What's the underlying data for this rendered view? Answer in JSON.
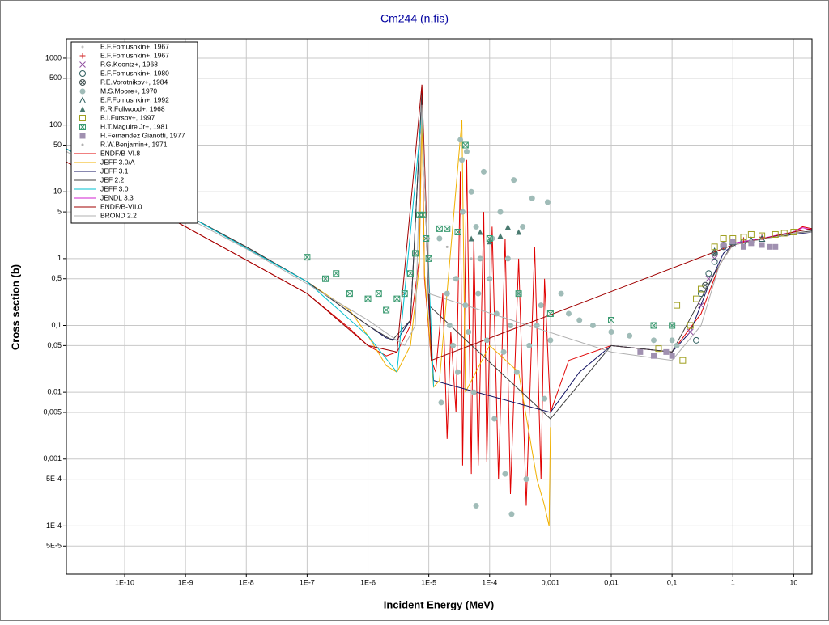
{
  "chart_data": {
    "type": "scatter",
    "title": "Cm244 (n,fis)",
    "x_label": "Incident Energy (MeV)",
    "y_label": "Cross section (b)",
    "log_x": true,
    "log_y": true,
    "grid": true,
    "legend": "upper left",
    "xlim": [
      1.1e-11,
      20
    ],
    "ylim": [
      1.9e-05,
      1950
    ],
    "xticks": [
      {
        "value": 1e-10,
        "label": "1E-10"
      },
      {
        "value": 1e-09,
        "label": "1E-9"
      },
      {
        "value": 1e-08,
        "label": "1E-8"
      },
      {
        "value": 1e-07,
        "label": "1E-7"
      },
      {
        "value": 1e-06,
        "label": "1E-6"
      },
      {
        "value": 1e-05,
        "label": "1E-5"
      },
      {
        "value": 0.0001,
        "label": "1E-4"
      },
      {
        "value": 0.001,
        "label": "0,001"
      },
      {
        "value": 0.01,
        "label": "0,01"
      },
      {
        "value": 0.1,
        "label": "0,1"
      },
      1,
      10
    ],
    "yticks": [
      1000,
      500,
      100,
      50,
      10,
      5,
      1,
      {
        "value": 0.5,
        "label": "0,5"
      },
      {
        "value": 0.1,
        "label": "0,1"
      },
      {
        "value": 0.05,
        "label": "0,05"
      },
      {
        "value": 0.01,
        "label": "0,01"
      },
      {
        "value": 0.005,
        "label": "0,005"
      },
      {
        "value": 0.001,
        "label": "0,001"
      },
      {
        "value": 0.0005,
        "label": "5E-4"
      },
      {
        "value": 0.0001,
        "label": "1E-4"
      },
      {
        "value": 5e-05,
        "label": "5E-5"
      }
    ],
    "series": [
      {
        "name": "E.F.Fomushkin+, 1967",
        "mode": "marker",
        "marker": "dot",
        "color": "#c0c0c0",
        "x": [
          0.5,
          1,
          2
        ],
        "values": [
          1.2,
          1.7,
          1.9
        ]
      },
      {
        "name": "E.F.Fomushkin+, 1967",
        "mode": "marker",
        "marker": "plus",
        "color": "#d02020",
        "x": [
          0.7,
          1.5,
          3
        ],
        "values": [
          1.5,
          1.9,
          2.1
        ]
      },
      {
        "name": "P.G.Koontz+, 1968",
        "mode": "marker",
        "marker": "x",
        "color": "#9050a0",
        "x": [
          0.2,
          0.3,
          0.4,
          0.5,
          0.7,
          1
        ],
        "values": [
          0.08,
          0.2,
          0.5,
          1.0,
          1.5,
          1.7
        ]
      },
      {
        "name": "E.F.Fomushkin+, 1980",
        "mode": "marker",
        "marker": "circle-open",
        "color": "#306060",
        "x": [
          0.25,
          0.3,
          0.4,
          0.5,
          0.7,
          1.5
        ],
        "values": [
          0.06,
          0.3,
          0.6,
          0.9,
          1.5,
          1.8
        ]
      },
      {
        "name": "P.E.Vorotnikov+, 1984",
        "mode": "marker",
        "marker": "circle-x",
        "color": "#405050",
        "x": [
          0.35,
          0.5,
          0.7,
          1
        ],
        "values": [
          0.4,
          1.2,
          1.6,
          1.7
        ]
      },
      {
        "name": "M.S.Moore+, 1970",
        "mode": "marker",
        "marker": "circle-filled",
        "color": "#a0bcb8",
        "x": [
          1.5e-05,
          2e-05,
          2.2e-05,
          2.5e-05,
          2.8e-05,
          3e-05,
          3.3e-05,
          3.5e-05,
          3.6e-05,
          4e-05,
          4.2e-05,
          4.5e-05,
          5e-05,
          5.5e-05,
          6e-05,
          6.5e-05,
          7e-05,
          8e-05,
          9e-05,
          0.0001,
          0.00011,
          0.00012,
          0.00013,
          0.00015,
          0.00017,
          0.00018,
          0.0002,
          0.00022,
          0.00025,
          0.00028,
          0.0003,
          0.00035,
          0.0004,
          0.00045,
          0.0005,
          0.0006,
          0.0007,
          0.0008,
          0.0009,
          0.001,
          0.0015,
          0.002,
          0.003,
          0.005,
          0.01,
          0.02,
          0.05,
          0.1,
          0.12,
          1.6e-05,
          0.00023,
          6e-05
        ],
        "values": [
          2,
          0.3,
          0.1,
          0.05,
          0.5,
          0.02,
          60,
          30,
          5,
          0.2,
          40,
          0.08,
          10,
          0.01,
          3,
          0.3,
          1,
          20,
          0.06,
          0.5,
          2,
          0.004,
          0.15,
          5,
          0.04,
          0.0006,
          1,
          0.1,
          15,
          0.02,
          0.3,
          3,
          0.0005,
          0.05,
          8,
          0.1,
          0.2,
          0.008,
          7,
          0.06,
          0.3,
          0.15,
          0.12,
          0.1,
          0.08,
          0.07,
          0.06,
          0.06,
          0.05,
          0.007,
          0.00015,
          0.0002
        ]
      },
      {
        "name": "E.F.Fomushkin+, 1992",
        "mode": "marker",
        "marker": "triangle-open",
        "color": "#306060",
        "x": [
          0.5,
          1,
          2,
          3
        ],
        "values": [
          1.3,
          1.8,
          1.9,
          2.0
        ]
      },
      {
        "name": "R.R.Fullwood+, 1968",
        "mode": "marker",
        "marker": "triangle-filled",
        "color": "#4a7a70",
        "x": [
          5e-05,
          7e-05,
          0.0001,
          0.00015,
          0.0002,
          0.0003
        ],
        "values": [
          2,
          2.5,
          1.8,
          2.2,
          3,
          2.5
        ]
      },
      {
        "name": "B.I.Fursov+, 1997",
        "mode": "marker",
        "marker": "square-open",
        "color": "#a0a020",
        "x": [
          0.06,
          0.12,
          0.15,
          0.2,
          0.25,
          0.3,
          0.5,
          0.7,
          1,
          1.5,
          2,
          3,
          5,
          7,
          10
        ],
        "values": [
          0.045,
          0.2,
          0.03,
          0.1,
          0.25,
          0.35,
          1.5,
          2,
          2,
          2.1,
          2.3,
          2.2,
          2.3,
          2.4,
          2.5
        ]
      },
      {
        "name": "H.T.Maguire Jr+, 1981",
        "mode": "marker",
        "marker": "square-x",
        "color": "#3a9a70",
        "x": [
          1e-07,
          2e-07,
          3e-07,
          5e-07,
          1e-06,
          1.5e-06,
          2e-06,
          3e-06,
          4e-06,
          5e-06,
          6e-06,
          7e-06,
          8e-06,
          9e-06,
          1e-05,
          1.5e-05,
          2e-05,
          3e-05,
          4e-05,
          0.0001,
          0.0003,
          0.001,
          0.01,
          0.05,
          0.1
        ],
        "values": [
          1.05,
          0.5,
          0.6,
          0.3,
          0.25,
          0.3,
          0.17,
          0.25,
          0.3,
          0.6,
          1.2,
          4.5,
          4.5,
          2,
          1,
          2.8,
          2.8,
          2.5,
          50,
          2,
          0.3,
          0.15,
          0.12,
          0.1,
          0.1
        ]
      },
      {
        "name": "H.Fernandez Gianotti, 1977",
        "mode": "marker",
        "marker": "square-filled",
        "color": "#a090b0",
        "x": [
          0.03,
          0.05,
          0.08,
          0.1,
          0.7,
          1,
          1.5,
          2,
          3,
          4,
          5
        ],
        "values": [
          0.04,
          0.035,
          0.04,
          0.035,
          1.6,
          1.8,
          1.5,
          1.7,
          1.6,
          1.5,
          1.5
        ]
      },
      {
        "name": "R.W.Benjamin+, 1971",
        "mode": "marker",
        "marker": "dot",
        "color": "#b0b0b0",
        "x": [
          1e-05,
          2e-05,
          5e-05
        ],
        "values": [
          2,
          1.5,
          1
        ]
      },
      {
        "name": "ENDF/B-VI.8",
        "mode": "line",
        "color": "#e00000",
        "x": [
          1.1e-11,
          1e-10,
          1e-09,
          1e-08,
          1e-07,
          5e-07,
          1e-06,
          2e-06,
          3e-06,
          5e-06,
          7e-06,
          7.7e-06,
          8.5e-06,
          1.1e-05,
          1.3e-05,
          1.7e-05,
          2e-05,
          2.3e-05,
          2.8e-05,
          3.3e-05,
          3.6e-05,
          4.2e-05,
          5e-05,
          5.5e-05,
          6.5e-05,
          8e-05,
          9e-05,
          0.00011,
          0.00014,
          0.00018,
          0.00022,
          0.0003,
          0.0004,
          0.00055,
          0.0007,
          0.0008,
          0.001,
          0.002,
          0.01,
          0.1,
          0.3,
          0.6,
          1,
          2,
          5,
          10,
          14,
          20
        ],
        "values": [
          28,
          9.5,
          3,
          0.95,
          0.3,
          0.09,
          0.05,
          0.035,
          0.04,
          0.1,
          1,
          400,
          0.5,
          0.03,
          0.02,
          0.3,
          0.002,
          0.08,
          0.005,
          20,
          0.0008,
          30,
          0.0006,
          2,
          0.0008,
          5,
          0.0009,
          3,
          0.0005,
          2,
          0.0003,
          1,
          0.0002,
          1.5,
          0.0005,
          0.5,
          0.005,
          0.03,
          0.05,
          0.04,
          0.15,
          0.8,
          1.6,
          1.8,
          2.2,
          2.5,
          3,
          2.8
        ]
      },
      {
        "name": "JEFF 3.0/A",
        "mode": "line",
        "color": "#f0b000",
        "x": [
          1.1e-11,
          1e-09,
          1e-08,
          1e-07,
          5e-07,
          1e-06,
          2e-06,
          3e-06,
          5e-06,
          7e-06,
          7.7e-06,
          8.5e-06,
          1.2e-05,
          1.5e-05,
          3.5e-05,
          4e-05,
          0.0001,
          0.0003,
          0.0006,
          0.0008,
          0.00095,
          0.001
        ],
        "values": [
          44,
          4.6,
          1.5,
          0.45,
          0.17,
          0.07,
          0.025,
          0.02,
          0.05,
          0.8,
          150,
          0.6,
          0.012,
          0.015,
          120,
          0.01,
          0.05,
          0.02,
          0.0005,
          0.0002,
          0.0001,
          0.003
        ]
      },
      {
        "name": "JEFF 3.1",
        "mode": "line",
        "color": "#101060",
        "x": [
          1.1e-11,
          1e-09,
          1e-08,
          1e-07,
          1e-06,
          2e-06,
          3e-06,
          5e-06,
          7.7e-06,
          1e-05,
          1.2e-05,
          0.001,
          0.003,
          0.01,
          0.03,
          0.1,
          0.2,
          0.4,
          0.7,
          1,
          3,
          10,
          20
        ],
        "values": [
          44,
          4.6,
          1.5,
          0.45,
          0.1,
          0.065,
          0.06,
          0.12,
          300,
          0.2,
          0.015,
          0.005,
          0.02,
          0.05,
          0.045,
          0.04,
          0.08,
          0.4,
          1.2,
          1.6,
          2,
          2.3,
          2.5
        ]
      },
      {
        "name": "JEF 2.2",
        "mode": "line",
        "color": "#404040",
        "x": [
          1.1e-11,
          1e-09,
          1e-08,
          1e-07,
          1e-06,
          2.5e-06,
          5e-06,
          7.7e-06,
          1e-05,
          0.001,
          0.01,
          0.1,
          0.5,
          1,
          10,
          20
        ],
        "values": [
          44,
          4.6,
          1.5,
          0.45,
          0.1,
          0.06,
          0.12,
          300,
          0.2,
          0.004,
          0.05,
          0.04,
          0.6,
          1.7,
          2.4,
          2.6
        ]
      },
      {
        "name": "JEFF 3.0",
        "mode": "line",
        "color": "#00c0d0",
        "x": [
          1.1e-11,
          1e-09,
          1e-07,
          1e-06,
          3e-06,
          7.7e-06,
          1.2e-05
        ],
        "values": [
          44,
          4.6,
          0.45,
          0.07,
          0.02,
          150,
          0.012
        ]
      },
      {
        "name": "JENDL 3.3",
        "mode": "line",
        "color": "#d020d0",
        "x": [
          1,
          3,
          6,
          10,
          14,
          20
        ],
        "values": [
          1.7,
          2.0,
          2.3,
          2.5,
          2.9,
          2.7
        ]
      },
      {
        "name": "ENDF/B-VII.0",
        "mode": "line",
        "color": "#a00000",
        "x": [
          1.1e-11,
          1e-09,
          1e-08,
          1e-07,
          1e-06,
          3e-06,
          7.7e-06,
          1.1e-05,
          1,
          10,
          20
        ],
        "values": [
          28,
          3,
          0.95,
          0.3,
          0.05,
          0.04,
          400,
          0.03,
          1.6,
          2.5,
          2.8
        ]
      },
      {
        "name": "BROND 2.2",
        "mode": "line",
        "color": "#b0b0b0",
        "x": [
          1.1e-11,
          1e-09,
          1e-08,
          1e-07,
          1e-06,
          4e-06,
          6e-06,
          7.7e-06,
          1e-05,
          0.01,
          0.1,
          0.3,
          0.6,
          1,
          10,
          20
        ],
        "values": [
          40,
          4.2,
          1.4,
          0.42,
          0.12,
          0.05,
          0.1,
          200,
          0.3,
          0.04,
          0.03,
          0.1,
          0.8,
          1.6,
          2.4,
          2.5
        ]
      }
    ]
  }
}
